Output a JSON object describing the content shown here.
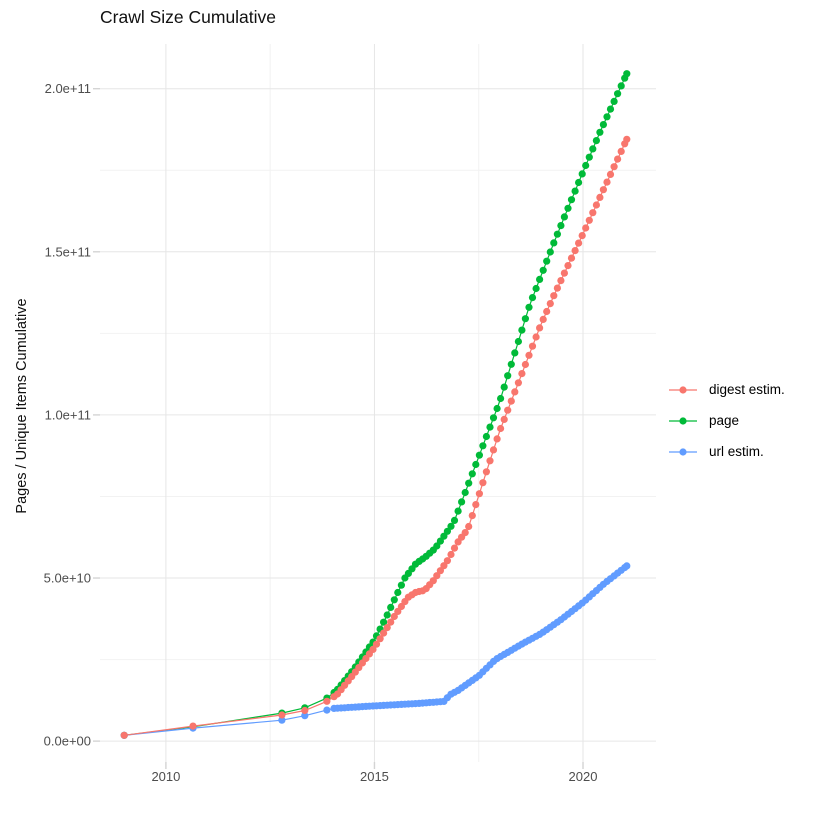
{
  "chart_data": {
    "type": "scatter",
    "title": "Crawl Size Cumulative",
    "xlabel": "",
    "ylabel": "Pages / Unique Items Cumulative",
    "y_unit": "billions (1e9)",
    "xlim": [
      2008.42,
      2021.75
    ],
    "ylim": [
      -6.4,
      213.7
    ],
    "x_ticks": [
      2010,
      2015,
      2020
    ],
    "x_tick_labels": [
      "2010",
      "2015",
      "2020"
    ],
    "x_minor_ticks": [
      2012.5,
      2017.5
    ],
    "y_ticks": [
      0,
      50,
      100,
      150,
      200
    ],
    "y_tick_labels": [
      "0.0e+00",
      "5.0e+10",
      "1.0e+11",
      "1.5e+11",
      "2.0e+11"
    ],
    "y_minor_ticks": [
      25,
      75,
      125,
      175
    ],
    "grid": "on",
    "grid_major_color": "#e6e6e6",
    "grid_minor_color": "#f2f2f2",
    "tick_mark_color": "#d4d4d4",
    "legend_position": "right",
    "marker_radius": 3.6,
    "line_width": 1.2,
    "early_crawl_x": [
      2009.0,
      2010.65,
      2012.78,
      2013.33,
      2013.86
    ],
    "marker_sampling": {
      "monthly_from": 2014.03,
      "monthly_step": 0.085,
      "monthly_to": 2021.05
    },
    "z_order": [
      1,
      2,
      0
    ],
    "series": [
      {
        "name": "digest estim.",
        "color": "#F8766D",
        "anchors": [
          [
            2009.0,
            1.8
          ],
          [
            2010.65,
            4.6
          ],
          [
            2012.78,
            8.0
          ],
          [
            2013.33,
            9.4
          ],
          [
            2013.86,
            12.2
          ],
          [
            2014.1,
            14.2
          ],
          [
            2014.5,
            20.5
          ],
          [
            2015.0,
            28.7
          ],
          [
            2015.5,
            38.7
          ],
          [
            2015.8,
            44.0
          ],
          [
            2016.0,
            45.7
          ],
          [
            2016.2,
            46.2
          ],
          [
            2016.4,
            49.0
          ],
          [
            2016.76,
            55.5
          ],
          [
            2017.0,
            61.0
          ],
          [
            2017.24,
            65.0
          ],
          [
            2018.0,
            95.0
          ],
          [
            2019.0,
            128.0
          ],
          [
            2019.33,
            137.4
          ],
          [
            2020.0,
            155.5
          ],
          [
            2021.05,
            184.5
          ]
        ]
      },
      {
        "name": "page",
        "color": "#00BA38",
        "anchors": [
          [
            2009.0,
            1.8
          ],
          [
            2010.65,
            4.4
          ],
          [
            2012.78,
            8.6
          ],
          [
            2013.33,
            10.2
          ],
          [
            2013.86,
            13.2
          ],
          [
            2014.1,
            15.6
          ],
          [
            2014.5,
            22.0
          ],
          [
            2015.0,
            31.0
          ],
          [
            2015.27,
            37.7
          ],
          [
            2015.5,
            44.0
          ],
          [
            2015.73,
            50.0
          ],
          [
            2016.0,
            54.5
          ],
          [
            2016.2,
            56.2
          ],
          [
            2016.45,
            59.0
          ],
          [
            2016.9,
            67.0
          ],
          [
            2017.05,
            72.0
          ],
          [
            2018.0,
            104.0
          ],
          [
            2018.73,
            134.0
          ],
          [
            2019.33,
            153.7
          ],
          [
            2020.0,
            174.5
          ],
          [
            2020.4,
            186.5
          ],
          [
            2021.05,
            204.6
          ]
        ]
      },
      {
        "name": "url estim.",
        "color": "#619CFF",
        "anchors": [
          [
            2009.0,
            1.8
          ],
          [
            2010.65,
            4.0
          ],
          [
            2012.78,
            6.4
          ],
          [
            2013.33,
            7.8
          ],
          [
            2013.86,
            9.5
          ],
          [
            2014.0,
            10.0
          ],
          [
            2015.0,
            10.8
          ],
          [
            2016.0,
            11.5
          ],
          [
            2016.7,
            12.2
          ],
          [
            2016.78,
            14.0
          ],
          [
            2017.0,
            15.5
          ],
          [
            2017.5,
            20.0
          ],
          [
            2017.9,
            25.0
          ],
          [
            2018.5,
            29.5
          ],
          [
            2019.0,
            33.0
          ],
          [
            2019.5,
            37.5
          ],
          [
            2020.0,
            42.5
          ],
          [
            2020.5,
            48.2
          ],
          [
            2021.05,
            53.7
          ]
        ]
      }
    ]
  }
}
